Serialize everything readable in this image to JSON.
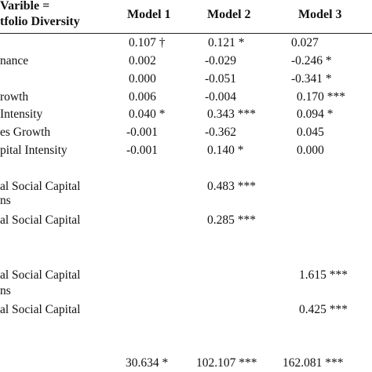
{
  "header": {
    "dv_line1": "Varible =",
    "dv_line2": "tfolio Diversity",
    "columns": [
      "Model 1",
      "Model 2",
      "Model 3"
    ]
  },
  "rows": [
    {
      "label": "",
      "values": [
        "0.107 †",
        "0.121 *",
        "0.027"
      ]
    },
    {
      "label": "nance",
      "values": [
        "0.002",
        "-0.029",
        "-0.246 *"
      ]
    },
    {
      "label": "",
      "values": [
        "0.000",
        "-0.051",
        "-0.341 *"
      ]
    },
    {
      "label": "rowth",
      "values": [
        "0.006",
        "-0.004",
        "0.170 ***"
      ]
    },
    {
      "label": " Intensity",
      "values": [
        "0.040 *",
        "0.343 ***",
        "0.094 *"
      ]
    },
    {
      "label": "es Growth",
      "values": [
        "-0.001",
        "-0.362",
        "0.045"
      ]
    },
    {
      "label": "pital Intensity",
      "values": [
        "-0.001",
        "0.140 *",
        "0.000"
      ]
    },
    {
      "label": "al Social Capital",
      "values": [
        "",
        "0.483 ***",
        ""
      ]
    },
    {
      "label": "ns",
      "values": [
        "",
        "",
        ""
      ]
    },
    {
      "label": "al Social Capital",
      "values": [
        "",
        "0.285 ***",
        ""
      ]
    },
    {
      "label": "al Social Capital",
      "values": [
        "",
        "",
        "1.615 ***"
      ]
    },
    {
      "label": "ns",
      "values": [
        "",
        "",
        ""
      ]
    },
    {
      "label": "al Social Capital",
      "values": [
        "",
        "",
        "0.425 ***"
      ]
    },
    {
      "label": "",
      "values": [
        "30.634 *",
        "102.107 ***",
        "162.081 ***"
      ]
    }
  ]
}
